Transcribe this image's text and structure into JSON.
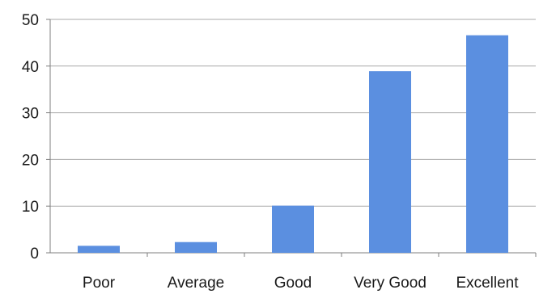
{
  "chart_data": {
    "type": "bar",
    "categories": [
      "Poor",
      "Average",
      "Good",
      "Very Good",
      "Excellent"
    ],
    "values": [
      1.5,
      2.3,
      10.1,
      38.9,
      46.6
    ],
    "ylim": [
      0,
      50
    ],
    "yticks": [
      0,
      10,
      20,
      30,
      40,
      50
    ],
    "grid": true,
    "bar_color": "#5b8fe0",
    "title": "",
    "xlabel": "",
    "ylabel": ""
  }
}
